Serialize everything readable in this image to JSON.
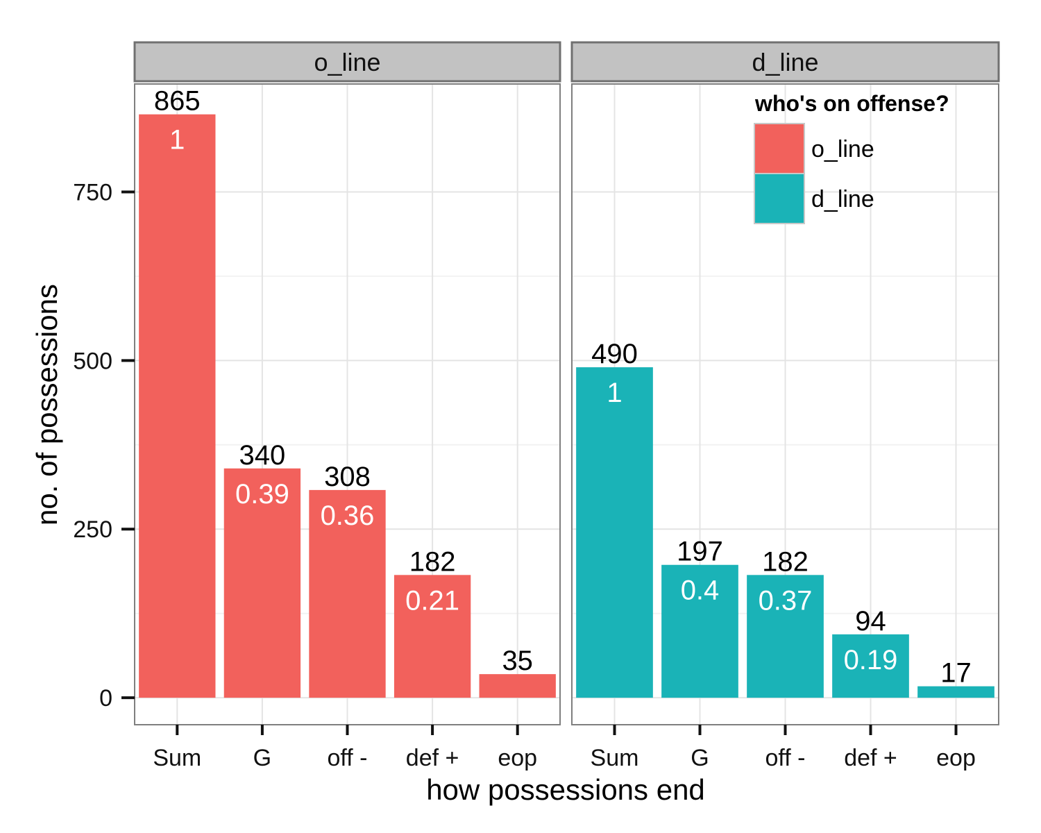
{
  "chart_data": {
    "type": "bar",
    "categories": [
      "Sum",
      "G",
      "off -",
      "def +",
      "eop"
    ],
    "xlabel": "how possessions end",
    "ylabel": "no. of possessions",
    "yticks": [
      0,
      250,
      500,
      750
    ],
    "ylim": [
      -40,
      910
    ],
    "grid": true,
    "legend": {
      "title": "who's on offense?",
      "position": "top-right",
      "entries": [
        {
          "name": "o_line",
          "color": "#F2615C"
        },
        {
          "name": "d_line",
          "color": "#1AB3B7"
        }
      ]
    },
    "facets": [
      {
        "name": "o_line",
        "color": "#F2615C",
        "values": [
          865,
          340,
          308,
          182,
          35
        ],
        "ratios": [
          "1",
          "0.39",
          "0.36",
          "0.21",
          ""
        ]
      },
      {
        "name": "d_line",
        "color": "#1AB3B7",
        "values": [
          490,
          197,
          182,
          94,
          17
        ],
        "ratios": [
          "1",
          "0.4",
          "0.37",
          "0.19",
          ""
        ]
      }
    ]
  }
}
